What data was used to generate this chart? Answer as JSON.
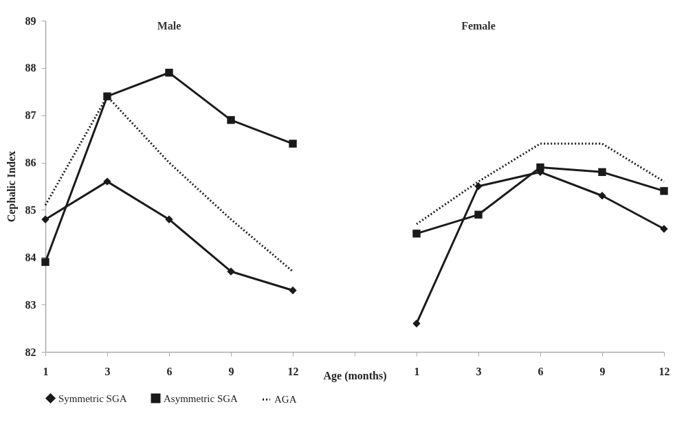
{
  "chart_data": {
    "type": "line",
    "xlabel": "Age (months)",
    "ylabel": "Cephalic Index",
    "categories": [
      "1",
      "3",
      "6",
      "9",
      "12",
      null,
      "1",
      "3",
      "6",
      "9",
      "12"
    ],
    "series": [
      {
        "name": "Symmetric SGA",
        "color": "#1a1a1a",
        "marker": "diamond",
        "line_style": "solid",
        "values": [
          84.8,
          85.6,
          84.8,
          83.7,
          83.3,
          null,
          82.6,
          85.5,
          85.8,
          85.3,
          84.6
        ]
      },
      {
        "name": "Asymmetric SGA",
        "color": "#1a1a1a",
        "marker": "square",
        "line_style": "solid",
        "values": [
          83.9,
          87.4,
          87.9,
          86.9,
          86.4,
          null,
          84.5,
          84.9,
          85.9,
          85.8,
          85.4
        ]
      },
      {
        "name": "AGA",
        "color": "#1a1a1a",
        "marker": "none",
        "line_style": "dotted",
        "values": [
          85.1,
          87.4,
          86.0,
          84.8,
          83.7,
          null,
          84.7,
          85.6,
          86.4,
          86.4,
          85.6
        ]
      }
    ],
    "annotations": [
      "Male",
      "Female"
    ],
    "ylim": [
      82,
      89
    ],
    "yticks": [
      82,
      83,
      84,
      85,
      86,
      87,
      88,
      89
    ],
    "grid": false,
    "legend": "bottom"
  }
}
